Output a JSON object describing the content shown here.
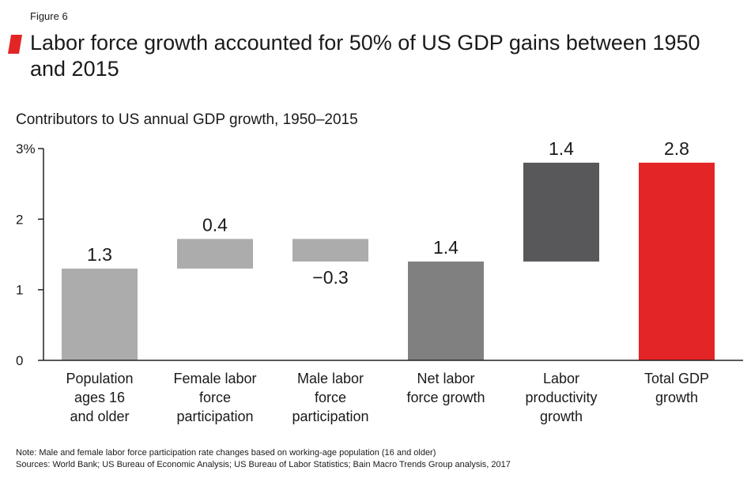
{
  "figure_label": "Figure 6",
  "title": "Labor force growth accounted for 50% of US GDP gains between 1950 and 2015",
  "subtitle": "Contributors to US annual GDP growth, 1950–2015",
  "colors": {
    "accent": "#e32525",
    "light_gray": "#acacac",
    "mid_gray": "#808080",
    "dark_gray": "#58585a",
    "axis": "#222222"
  },
  "chart_data": {
    "type": "waterfall",
    "title": "Contributors to US annual GDP growth, 1950–2015",
    "ylabel": "",
    "ylim": [
      0,
      3
    ],
    "yticks": [
      {
        "value": 0,
        "label": "0"
      },
      {
        "value": 1,
        "label": "1"
      },
      {
        "value": 2,
        "label": "2"
      },
      {
        "value": 3,
        "label": "3%"
      }
    ],
    "grid": false,
    "bars": [
      {
        "category": [
          "Population",
          "ages 16",
          "and older"
        ],
        "start": 0,
        "end": 1.3,
        "label": "1.3",
        "label_position": "above",
        "color": "#acacac"
      },
      {
        "category": [
          "Female labor",
          "force",
          "participation"
        ],
        "start": 1.3,
        "end": 1.72,
        "label": "0.4",
        "label_position": "above",
        "color": "#acacac"
      },
      {
        "category": [
          "Male labor",
          "force",
          "participation"
        ],
        "start": 1.72,
        "end": 1.4,
        "label": "−0.3",
        "label_position": "below",
        "color": "#acacac"
      },
      {
        "category": [
          "Net labor",
          "force growth"
        ],
        "start": 0,
        "end": 1.4,
        "label": "1.4",
        "label_position": "above",
        "color": "#808080"
      },
      {
        "category": [
          "Labor",
          "productivity",
          "growth"
        ],
        "start": 1.4,
        "end": 2.8,
        "label": "1.4",
        "label_position": "above",
        "color": "#58585a"
      },
      {
        "category": [
          "Total GDP",
          "growth"
        ],
        "start": 0,
        "end": 2.8,
        "label": "2.8",
        "label_position": "above",
        "color": "#e32525"
      }
    ]
  },
  "notes": [
    "Note: Male and female labor force participation rate changes based on working-age population (16 and older)",
    "Sources: World Bank; US Bureau of Economic Analysis; US Bureau of Labor Statistics; Bain Macro Trends Group analysis, 2017"
  ]
}
